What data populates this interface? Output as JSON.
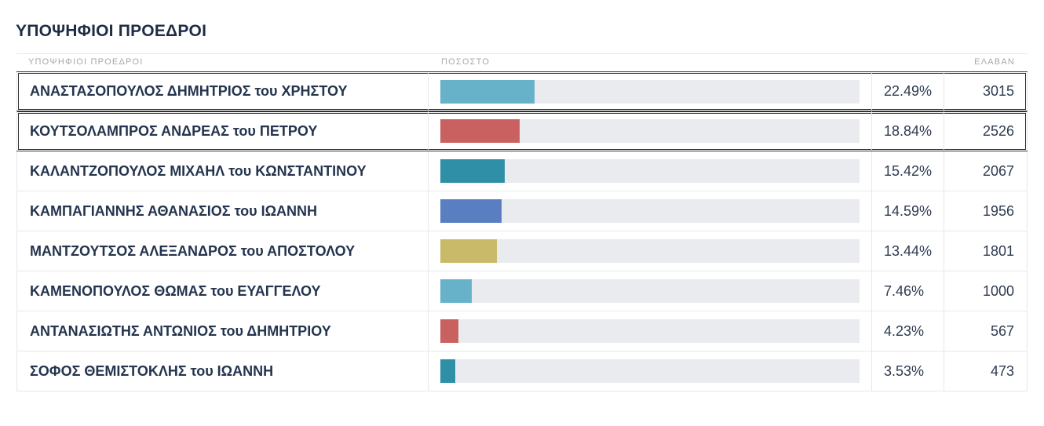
{
  "section_title": "ΥΠΟΨΗΦΙΟΙ ΠΡΟΕΔΡΟΙ",
  "table": {
    "headers": {
      "candidates": "ΥΠΟΨΗΦΙΟΙ ΠΡΟΕΔΡΟΙ",
      "percentage": "ΠΟΣΟΣΤΟ",
      "votes": "ΕΛΑΒΑΝ"
    }
  },
  "chart_data": {
    "type": "bar",
    "orientation": "horizontal",
    "title": "ΥΠΟΨΗΦΙΟΙ ΠΡΟΕΔΡΟΙ",
    "xlim": [
      0,
      100
    ],
    "categories": [
      "ΑΝΑΣΤΑΣΟΠΟΥΛΟΣ ΔΗΜΗΤΡΙΟΣ του ΧΡΗΣΤΟΥ",
      "ΚΟΥΤΣΟΛΑΜΠΡΟΣ ΑΝΔΡΕΑΣ του ΠΕΤΡΟΥ",
      "ΚΑΛΑΝΤΖΟΠΟΥΛΟΣ ΜΙΧΑΗΛ του ΚΩΝΣΤΑΝΤΙΝΟΥ",
      "ΚΑΜΠΑΓΙΑΝΝΗΣ ΑΘΑΝΑΣΙΟΣ του ΙΩΑΝΝΗ",
      "ΜΑΝΤΖΟΥΤΣΟΣ ΑΛΕΞΑΝΔΡΟΣ του ΑΠΟΣΤΟΛΟΥ",
      "ΚΑΜΕΝΟΠΟΥΛΟΣ ΘΩΜΑΣ του ΕΥΑΓΓΕΛΟΥ",
      "ΑΝΤΑΝΑΣΙΩΤΗΣ ΑΝΤΩΝΙΟΣ του ΔΗΜΗΤΡΙΟΥ",
      "ΣΟΦΟΣ ΘΕΜΙΣΤΟΚΛΗΣ του ΙΩΑΝΝΗ"
    ],
    "values": [
      22.49,
      18.84,
      15.42,
      14.59,
      13.44,
      7.46,
      4.23,
      3.53
    ],
    "percent_labels": [
      "22.49%",
      "18.84%",
      "15.42%",
      "14.59%",
      "13.44%",
      "7.46%",
      "4.23%",
      "3.53%"
    ],
    "votes": [
      "3015",
      "2526",
      "2067",
      "1956",
      "1801",
      "1000",
      "567",
      "473"
    ],
    "colors": [
      "#68b2c9",
      "#c96161",
      "#2e8fa6",
      "#5a7fc1",
      "#c9ba69",
      "#68b2c9",
      "#c96161",
      "#2e8fa6"
    ],
    "highlighted": [
      true,
      true,
      false,
      false,
      false,
      false,
      false,
      false
    ]
  },
  "colors": {
    "bar_track": "#e9ebee",
    "highlight_border": "#333333",
    "text": "#24344e"
  }
}
